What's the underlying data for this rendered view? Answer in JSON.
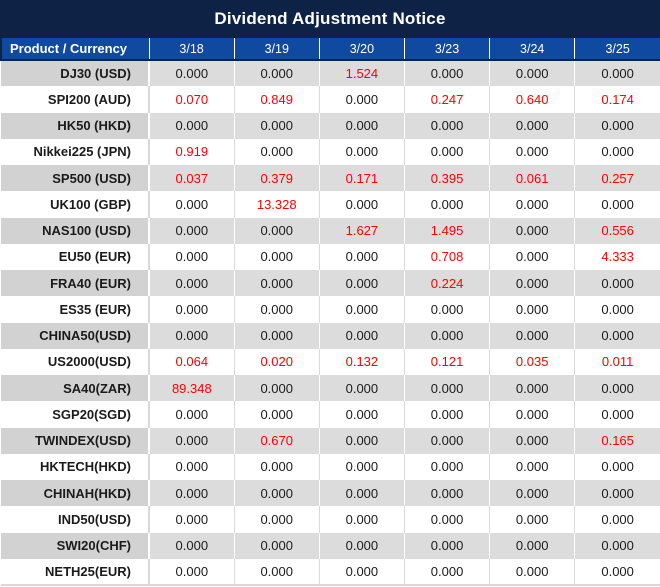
{
  "colors": {
    "title_bar_bg": "#0D2244",
    "header_bg": "#1049A0",
    "header_text": "#FFFFFF",
    "row_gray_value_bg": "#DCDCDC",
    "row_gray_label_bg": "#D2D2D2",
    "row_white_bg": "#FFFFFF",
    "value_text": "#1B1B1B",
    "highlight_value_text": "#FF0000"
  },
  "chart_data": {
    "type": "table",
    "title": "Dividend Adjustment Notice",
    "columns": [
      "Product / Currency",
      "3/18",
      "3/19",
      "3/20",
      "3/23",
      "3/24",
      "3/25"
    ],
    "rows": [
      {
        "product": "DJ30 (USD)",
        "values": [
          "0.000",
          "0.000",
          "1.524",
          "0.000",
          "0.000",
          "0.000"
        ],
        "red": [
          0,
          0,
          1,
          0,
          0,
          0
        ]
      },
      {
        "product": "SPI200 (AUD)",
        "values": [
          "0.070",
          "0.849",
          "0.000",
          "0.247",
          "0.640",
          "0.174"
        ],
        "red": [
          1,
          1,
          0,
          1,
          1,
          1
        ]
      },
      {
        "product": "HK50 (HKD)",
        "values": [
          "0.000",
          "0.000",
          "0.000",
          "0.000",
          "0.000",
          "0.000"
        ],
        "red": [
          0,
          0,
          0,
          0,
          0,
          0
        ]
      },
      {
        "product": "Nikkei225 (JPN)",
        "values": [
          "0.919",
          "0.000",
          "0.000",
          "0.000",
          "0.000",
          "0.000"
        ],
        "red": [
          1,
          0,
          0,
          0,
          0,
          0
        ]
      },
      {
        "product": "SP500 (USD)",
        "values": [
          "0.037",
          "0.379",
          "0.171",
          "0.395",
          "0.061",
          "0.257"
        ],
        "red": [
          1,
          1,
          1,
          1,
          1,
          1
        ]
      },
      {
        "product": "UK100 (GBP)",
        "values": [
          "0.000",
          "13.328",
          "0.000",
          "0.000",
          "0.000",
          "0.000"
        ],
        "red": [
          0,
          1,
          0,
          0,
          0,
          0
        ]
      },
      {
        "product": "NAS100 (USD)",
        "values": [
          "0.000",
          "0.000",
          "1.627",
          "1.495",
          "0.000",
          "0.556"
        ],
        "red": [
          0,
          0,
          1,
          1,
          0,
          1
        ]
      },
      {
        "product": "EU50 (EUR)",
        "values": [
          "0.000",
          "0.000",
          "0.000",
          "0.708",
          "0.000",
          "4.333"
        ],
        "red": [
          0,
          0,
          0,
          1,
          0,
          1
        ]
      },
      {
        "product": "FRA40 (EUR)",
        "values": [
          "0.000",
          "0.000",
          "0.000",
          "0.224",
          "0.000",
          "0.000"
        ],
        "red": [
          0,
          0,
          0,
          1,
          0,
          0
        ]
      },
      {
        "product": "ES35 (EUR)",
        "values": [
          "0.000",
          "0.000",
          "0.000",
          "0.000",
          "0.000",
          "0.000"
        ],
        "red": [
          0,
          0,
          0,
          0,
          0,
          0
        ]
      },
      {
        "product": "CHINA50(USD)",
        "values": [
          "0.000",
          "0.000",
          "0.000",
          "0.000",
          "0.000",
          "0.000"
        ],
        "red": [
          0,
          0,
          0,
          0,
          0,
          0
        ]
      },
      {
        "product": "US2000(USD)",
        "values": [
          "0.064",
          "0.020",
          "0.132",
          "0.121",
          "0.035",
          "0.011"
        ],
        "red": [
          1,
          1,
          1,
          1,
          1,
          1
        ]
      },
      {
        "product": "SA40(ZAR)",
        "values": [
          "89.348",
          "0.000",
          "0.000",
          "0.000",
          "0.000",
          "0.000"
        ],
        "red": [
          1,
          0,
          0,
          0,
          0,
          0
        ]
      },
      {
        "product": "SGP20(SGD)",
        "values": [
          "0.000",
          "0.000",
          "0.000",
          "0.000",
          "0.000",
          "0.000"
        ],
        "red": [
          0,
          0,
          0,
          0,
          0,
          0
        ]
      },
      {
        "product": "TWINDEX(USD)",
        "values": [
          "0.000",
          "0.670",
          "0.000",
          "0.000",
          "0.000",
          "0.165"
        ],
        "red": [
          0,
          1,
          0,
          0,
          0,
          1
        ]
      },
      {
        "product": "HKTECH(HKD)",
        "values": [
          "0.000",
          "0.000",
          "0.000",
          "0.000",
          "0.000",
          "0.000"
        ],
        "red": [
          0,
          0,
          0,
          0,
          0,
          0
        ]
      },
      {
        "product": "CHINAH(HKD)",
        "values": [
          "0.000",
          "0.000",
          "0.000",
          "0.000",
          "0.000",
          "0.000"
        ],
        "red": [
          0,
          0,
          0,
          0,
          0,
          0
        ]
      },
      {
        "product": "IND50(USD)",
        "values": [
          "0.000",
          "0.000",
          "0.000",
          "0.000",
          "0.000",
          "0.000"
        ],
        "red": [
          0,
          0,
          0,
          0,
          0,
          0
        ]
      },
      {
        "product": "SWI20(CHF)",
        "values": [
          "0.000",
          "0.000",
          "0.000",
          "0.000",
          "0.000",
          "0.000"
        ],
        "red": [
          0,
          0,
          0,
          0,
          0,
          0
        ]
      },
      {
        "product": "NETH25(EUR)",
        "values": [
          "0.000",
          "0.000",
          "0.000",
          "0.000",
          "0.000",
          "0.000"
        ],
        "red": [
          0,
          0,
          0,
          0,
          0,
          0
        ]
      }
    ],
    "layout": {
      "first_row_shade": "gray",
      "row_shading": "alternating",
      "label_alignment": "right",
      "value_alignment": "center"
    }
  }
}
